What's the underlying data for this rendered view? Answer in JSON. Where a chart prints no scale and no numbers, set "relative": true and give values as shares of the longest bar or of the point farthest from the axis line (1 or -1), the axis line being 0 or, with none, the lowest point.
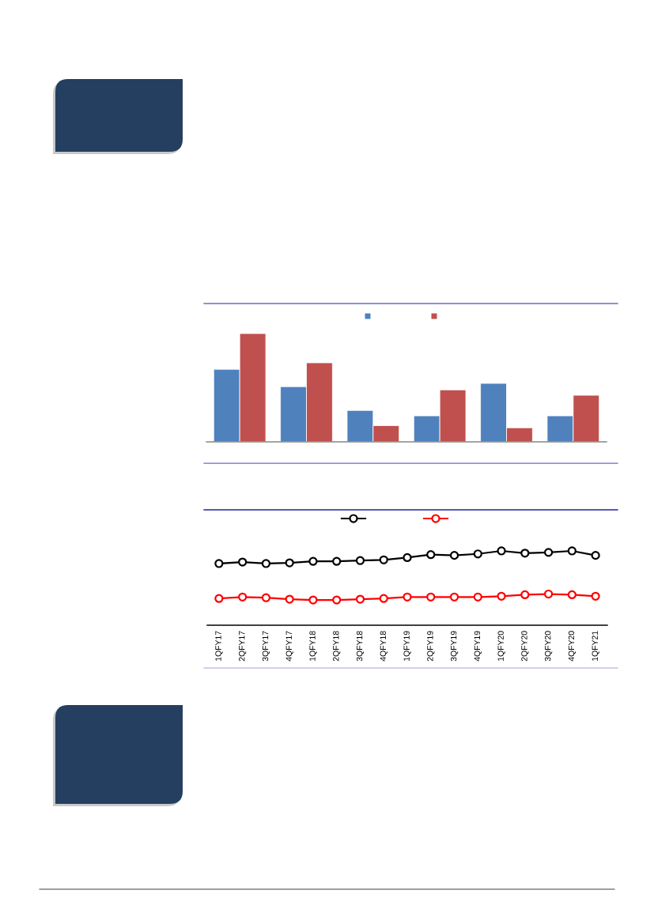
{
  "chart_data": [
    {
      "type": "bar",
      "relative": true,
      "categories": [
        null,
        null,
        null,
        null,
        null,
        null
      ],
      "series": [
        {
          "color": "#4f81bd",
          "values": [
            0.67,
            0.51,
            0.29,
            0.24,
            0.54,
            0.24
          ]
        },
        {
          "color": "#c0504d",
          "values": [
            1,
            0.73,
            0.15,
            0.48,
            0.13,
            0.43
          ]
        }
      ]
    },
    {
      "type": "line",
      "relative": true,
      "marker": "circle",
      "categories": [
        "1QFY17",
        "2QFY17",
        "3QFY17",
        "4QFY17",
        "1QFY18",
        "2QFY18",
        "3QFY18",
        "4QFY18",
        "1QFY19",
        "2QFY19",
        "3QFY19",
        "4QFY19",
        "1QFY20",
        "2QFY20",
        "3QFY20",
        "4QFY20",
        "1QFY21"
      ],
      "series": [
        {
          "color": "#000000",
          "values": [
            0.83,
            0.85,
            0.83,
            0.84,
            0.86,
            0.86,
            0.87,
            0.88,
            0.91,
            0.95,
            0.94,
            0.96,
            1,
            0.97,
            0.98,
            1,
            0.94
          ]
        },
        {
          "color": "#ff0000",
          "values": [
            0.36,
            0.38,
            0.37,
            0.35,
            0.34,
            0.34,
            0.35,
            0.36,
            0.38,
            0.38,
            0.38,
            0.38,
            0.39,
            0.41,
            0.42,
            0.41,
            0.39
          ]
        }
      ]
    }
  ]
}
